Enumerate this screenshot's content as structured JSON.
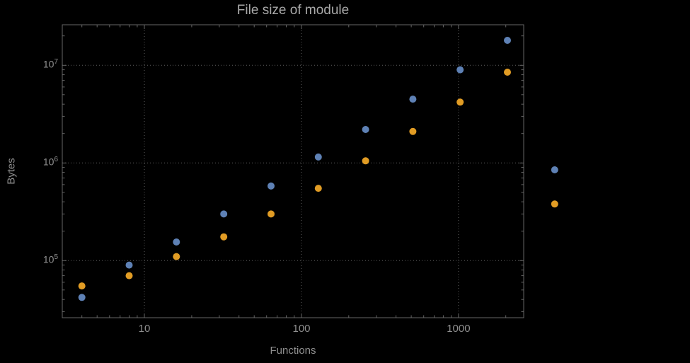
{
  "colors": {
    "background": "#000000",
    "frame": "#666666",
    "grid": "#5c5c5c",
    "tick_text": "#8f8f8f",
    "title_text": "#a9a9a9",
    "series_blue": "#5e81b5",
    "series_orange": "#e19c24"
  },
  "chart_data": {
    "type": "scatter",
    "title": "File size of module",
    "xlabel": "Functions",
    "ylabel": "Bytes",
    "xscale": "log",
    "yscale": "log",
    "grid": "dotted lines at major ticks only",
    "legend": "none",
    "xlim": [
      3,
      2600
    ],
    "ylim": [
      26000,
      26000000
    ],
    "x_ticks": [
      10,
      100,
      1000
    ],
    "x_tick_labels": [
      "10",
      "100",
      "1000"
    ],
    "y_tick_base": "10",
    "y_tick_exponents": [
      5,
      6,
      7
    ],
    "x": [
      4,
      8,
      16,
      32,
      64,
      128,
      256,
      512,
      1024,
      2048,
      4096
    ],
    "series": [
      {
        "name": "series-blue",
        "color": "#5e81b5",
        "values": [
          42000,
          90000,
          155000,
          300000,
          580000,
          1150000,
          2200000,
          4500000,
          9000000,
          18000000,
          850000
        ]
      },
      {
        "name": "series-orange",
        "color": "#e19c24",
        "values": [
          55000,
          70000,
          110000,
          175000,
          300000,
          550000,
          1050000,
          2100000,
          4200000,
          8500000,
          380000
        ]
      }
    ]
  }
}
